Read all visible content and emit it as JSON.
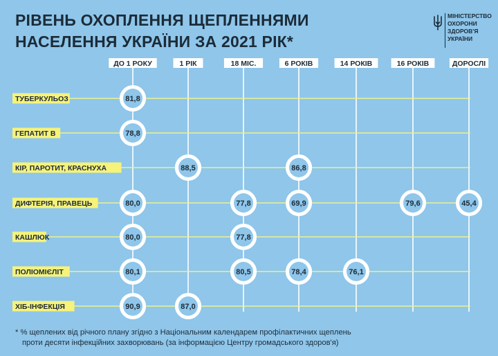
{
  "header": {
    "title_line1": "РІВЕНЬ ОХОПЛЕННЯ ЩЕПЛЕННЯМИ",
    "title_line2": "НАСЕЛЕННЯ УКРАЇНИ ЗА 2021 РІК*"
  },
  "logo": {
    "lines": [
      "МІНІСТЕРСТВО",
      "ОХОРОНИ",
      "ЗДОРОВ'Я",
      "УКРАЇНИ"
    ],
    "icon": "trident-icon"
  },
  "colors": {
    "background": "#8fc6ea",
    "label_bg": "#f6f27a",
    "grid_line": "#eef28a",
    "ring": "#ffffff",
    "ring_fill": "#8fc6ea",
    "text": "#1c2b38"
  },
  "chart_data": {
    "type": "table",
    "columns": [
      "ДО 1 РОКУ",
      "1 РІК",
      "18 МІС.",
      "6 РОКІВ",
      "14 РОКІВ",
      "16 РОКІВ",
      "ДОРОСЛІ"
    ],
    "rows": [
      {
        "label": "ТУБЕРКУЛЬОЗ",
        "values": [
          "81,8",
          null,
          null,
          null,
          null,
          null,
          null
        ]
      },
      {
        "label": "ГЕПАТИТ В",
        "values": [
          "78,8",
          null,
          null,
          null,
          null,
          null,
          null
        ]
      },
      {
        "label": "КІР, ПАРОТИТ, КРАСНУХА",
        "values": [
          null,
          "88,5",
          null,
          "86,8",
          null,
          null,
          null
        ]
      },
      {
        "label": "ДИФТЕРІЯ, ПРАВЕЦЬ",
        "values": [
          "80,0",
          null,
          "77,8",
          "69,9",
          null,
          "79,6",
          "45,4"
        ]
      },
      {
        "label": "КАШЛЮК",
        "values": [
          "80,0",
          null,
          "77,8",
          null,
          null,
          null,
          null
        ]
      },
      {
        "label": "ПОЛІОМІЄЛІТ",
        "values": [
          "80,1",
          null,
          "80,5",
          "78,4",
          "76,1",
          null,
          null
        ]
      },
      {
        "label": "ХІБ-ІНФЕКЦІЯ",
        "values": [
          "90,9",
          "87,0",
          null,
          null,
          null,
          null,
          null
        ]
      }
    ],
    "unit": "%"
  },
  "footnote": {
    "line1": "* % щеплених від річного плану згідно з Національним календарем профілактичних щеплень",
    "line2": "проти десяти інфекційних захворювань (за інформацією Центру громадського здоров'я)"
  }
}
